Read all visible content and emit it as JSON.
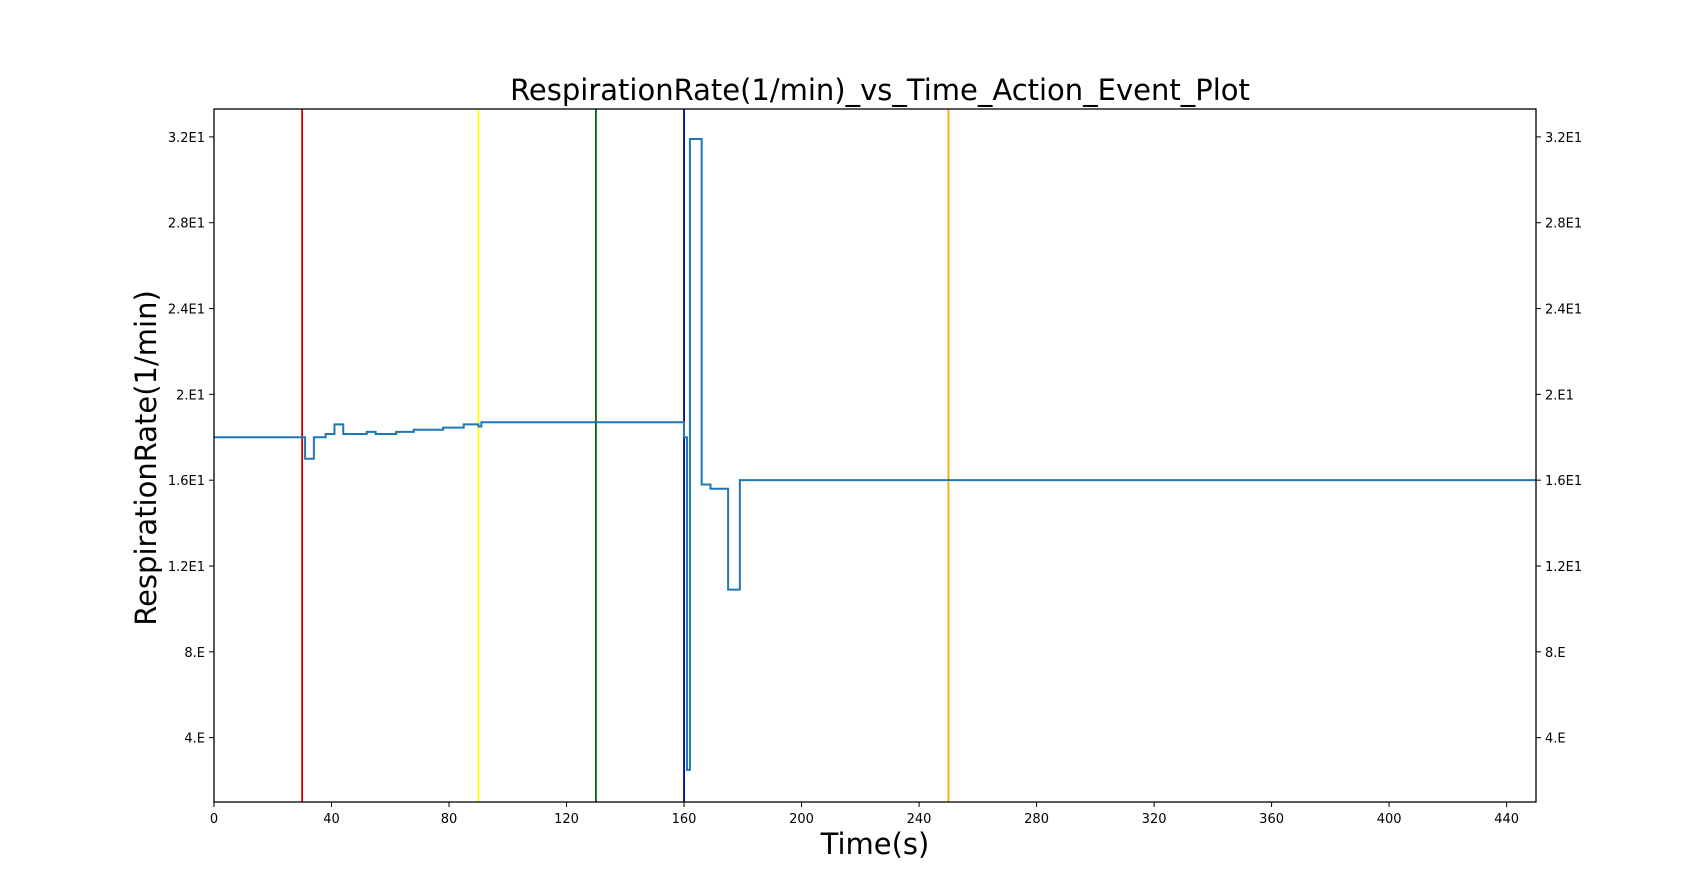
{
  "chart_data": {
    "type": "line",
    "title": "RespirationRate(1/min)_vs_Time_Action_Event_Plot",
    "xlabel": "Time(s)",
    "ylabel": "RespirationRate(1/min)",
    "xlim": [
      0,
      450
    ],
    "ylim": [
      1.0,
      33.3
    ],
    "xticks": [
      0,
      40,
      80,
      120,
      160,
      200,
      240,
      280,
      320,
      360,
      400,
      440
    ],
    "xtick_labels": [
      "0",
      "40",
      "80",
      "120",
      "160",
      "200",
      "240",
      "280",
      "320",
      "360",
      "400",
      "440"
    ],
    "yticks": [
      4,
      8,
      12,
      16,
      20,
      24,
      28,
      32
    ],
    "ytick_labels": [
      "4.E",
      "8.E",
      "1.2E1",
      "1.6E1",
      "2.E1",
      "2.4E1",
      "2.8E1",
      "3.2E1"
    ],
    "grid": false,
    "series": [
      {
        "color": "#1f77b4",
        "x": [
          0,
          31,
          31,
          34,
          34,
          38,
          38,
          41,
          41,
          44,
          44,
          52,
          52,
          55,
          55,
          62,
          62,
          68,
          68,
          78,
          78,
          85,
          85,
          90,
          90,
          91,
          91,
          160,
          160,
          161,
          161,
          162,
          162,
          166,
          166,
          169,
          169,
          175,
          175,
          179,
          179,
          450
        ],
        "y": [
          18.0,
          18.0,
          17.0,
          17.0,
          18.0,
          18.0,
          18.15,
          18.15,
          18.6,
          18.6,
          18.15,
          18.15,
          18.25,
          18.25,
          18.15,
          18.15,
          18.25,
          18.25,
          18.35,
          18.35,
          18.45,
          18.45,
          18.6,
          18.6,
          18.5,
          18.5,
          18.7,
          18.7,
          18.0,
          18.0,
          2.5,
          2.5,
          31.9,
          31.9,
          15.8,
          15.8,
          15.6,
          15.6,
          10.9,
          10.9,
          16.0,
          16.0
        ]
      }
    ],
    "event_lines": [
      {
        "x": 30,
        "color": "#cc0000"
      },
      {
        "x": 90,
        "color": "#ffff00"
      },
      {
        "x": 130,
        "color": "#006400"
      },
      {
        "x": 160,
        "color": "#00008b"
      },
      {
        "x": 250,
        "color": "#ffa500"
      }
    ]
  }
}
